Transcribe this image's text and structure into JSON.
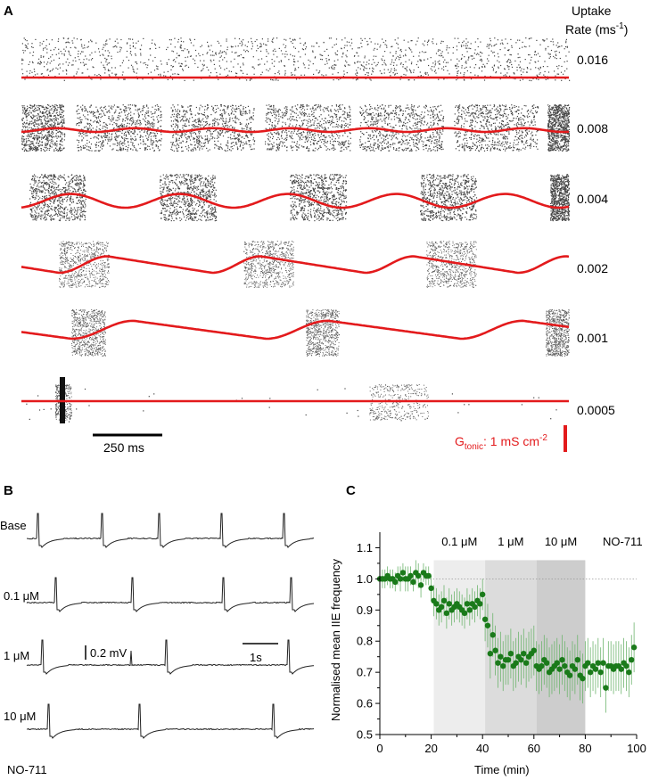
{
  "panels": {
    "a": {
      "label": "A",
      "uptake_title_line1": "Uptake",
      "uptake_title_line2": "Rate (ms",
      "uptake_title_sup": "-1",
      "uptake_title_close": ")",
      "rows": [
        {
          "rate": "0.016",
          "raster_pattern": "continuous",
          "curve_amplitude": 0.0,
          "curve_period_ms": 0
        },
        {
          "rate": "0.008",
          "raster_pattern": "bursts",
          "curve_amplitude": 0.15,
          "curve_period_ms": 280
        },
        {
          "rate": "0.004",
          "raster_pattern": "bursts",
          "curve_amplitude": 0.55,
          "curve_period_ms": 390
        },
        {
          "rate": "0.002",
          "raster_pattern": "bursts",
          "curve_amplitude": 0.55,
          "curve_period_ms": 550
        },
        {
          "rate": "0.001",
          "raster_pattern": "bursts",
          "curve_amplitude": 0.6,
          "curve_period_ms": 700
        },
        {
          "rate": "0.0005",
          "raster_pattern": "sparse",
          "curve_amplitude": 0.02,
          "curve_period_ms": 0
        }
      ],
      "time_scale_label": "250 ms",
      "gtonic_label_main": "G",
      "gtonic_label_sub": "tonic",
      "gtonic_label_rest": ": 1 mS cm",
      "gtonic_label_sup": "-2",
      "curve_color": "#e31a1c"
    },
    "b": {
      "label": "B",
      "traces": [
        {
          "label": "Base"
        },
        {
          "label": "0.1 μM"
        },
        {
          "label": "1 μM"
        },
        {
          "label": "10 μM"
        }
      ],
      "footer_label": "NO-711",
      "voltage_scale_label": "0.2 mV",
      "time_scale_label": "1s"
    },
    "c": {
      "label": "C"
    }
  },
  "chart_data": {
    "type": "scatter",
    "title": "",
    "xlabel": "Time (min)",
    "ylabel": "Normalised mean IIE frequency",
    "xlim": [
      0,
      100
    ],
    "ylim": [
      0.5,
      1.15
    ],
    "xticks": [
      "0",
      "20",
      "40",
      "60",
      "80",
      "100"
    ],
    "yticks": [
      "0.5",
      "0.6",
      "0.7",
      "0.8",
      "0.9",
      "1.0",
      "1.1"
    ],
    "reference_line_y": 1.0,
    "marker_color": "#1a7a1a",
    "shaded_periods": [
      {
        "label": "0.1 μM",
        "start": 21,
        "end": 41,
        "shade": "#ededed"
      },
      {
        "label": "1 μM",
        "start": 41,
        "end": 61,
        "shade": "#dcdcdc"
      },
      {
        "label": "10 μM",
        "start": 61,
        "end": 80,
        "shade": "#cdcdcd"
      }
    ],
    "post_label": "NO-711",
    "series": [
      {
        "name": "Normalised mean IIE frequency",
        "x": [
          0,
          1,
          2,
          3,
          4,
          5,
          6,
          7,
          8,
          9,
          10,
          11,
          12,
          13,
          14,
          15,
          16,
          17,
          18,
          19,
          20,
          21,
          22,
          23,
          24,
          25,
          26,
          27,
          28,
          29,
          30,
          31,
          32,
          33,
          34,
          35,
          36,
          37,
          38,
          39,
          40,
          41,
          42,
          43,
          44,
          45,
          46,
          47,
          48,
          49,
          50,
          51,
          52,
          53,
          54,
          55,
          56,
          57,
          58,
          59,
          60,
          61,
          62,
          63,
          64,
          65,
          66,
          67,
          68,
          69,
          70,
          71,
          72,
          73,
          74,
          75,
          76,
          77,
          78,
          79,
          80,
          81,
          82,
          83,
          84,
          85,
          86,
          87,
          88,
          89,
          90,
          91,
          92,
          93,
          94,
          95,
          96,
          97,
          98,
          99
        ],
        "y": [
          1.0,
          1.0,
          1.0,
          1.01,
          1.0,
          1.0,
          0.99,
          1.01,
          1.0,
          1.02,
          1.0,
          1.0,
          1.01,
          0.99,
          1.02,
          1.01,
          0.98,
          1.02,
          1.01,
          1.01,
          0.97,
          0.93,
          0.92,
          0.9,
          0.91,
          0.93,
          0.89,
          0.92,
          0.9,
          0.91,
          0.92,
          0.91,
          0.9,
          0.89,
          0.92,
          0.9,
          0.92,
          0.91,
          0.93,
          0.92,
          0.95,
          0.87,
          0.85,
          0.76,
          0.82,
          0.77,
          0.73,
          0.75,
          0.72,
          0.74,
          0.74,
          0.76,
          0.72,
          0.73,
          0.75,
          0.74,
          0.76,
          0.73,
          0.75,
          0.76,
          0.77,
          0.72,
          0.71,
          0.72,
          0.74,
          0.73,
          0.7,
          0.71,
          0.72,
          0.73,
          0.71,
          0.74,
          0.72,
          0.7,
          0.69,
          0.72,
          0.71,
          0.74,
          0.69,
          0.68,
          0.72,
          0.73,
          0.7,
          0.72,
          0.71,
          0.73,
          0.7,
          0.73,
          0.65,
          0.72,
          0.72,
          0.71,
          0.72,
          0.72,
          0.71,
          0.73,
          0.72,
          0.7,
          0.74,
          0.78
        ],
        "err": [
          0.03,
          0.03,
          0.03,
          0.03,
          0.03,
          0.03,
          0.03,
          0.03,
          0.04,
          0.03,
          0.04,
          0.04,
          0.03,
          0.03,
          0.04,
          0.04,
          0.04,
          0.03,
          0.03,
          0.03,
          0.04,
          0.05,
          0.05,
          0.05,
          0.05,
          0.05,
          0.05,
          0.05,
          0.05,
          0.05,
          0.05,
          0.05,
          0.05,
          0.05,
          0.05,
          0.05,
          0.05,
          0.05,
          0.05,
          0.05,
          0.05,
          0.07,
          0.07,
          0.08,
          0.07,
          0.08,
          0.08,
          0.08,
          0.08,
          0.08,
          0.08,
          0.08,
          0.08,
          0.08,
          0.08,
          0.08,
          0.08,
          0.08,
          0.08,
          0.08,
          0.08,
          0.08,
          0.08,
          0.08,
          0.08,
          0.08,
          0.08,
          0.08,
          0.08,
          0.08,
          0.08,
          0.08,
          0.08,
          0.08,
          0.08,
          0.08,
          0.08,
          0.08,
          0.08,
          0.08,
          0.08,
          0.08,
          0.08,
          0.08,
          0.08,
          0.08,
          0.08,
          0.08,
          0.08,
          0.08,
          0.08,
          0.08,
          0.08,
          0.08,
          0.08,
          0.08,
          0.08,
          0.08,
          0.08,
          0.08
        ]
      }
    ]
  }
}
